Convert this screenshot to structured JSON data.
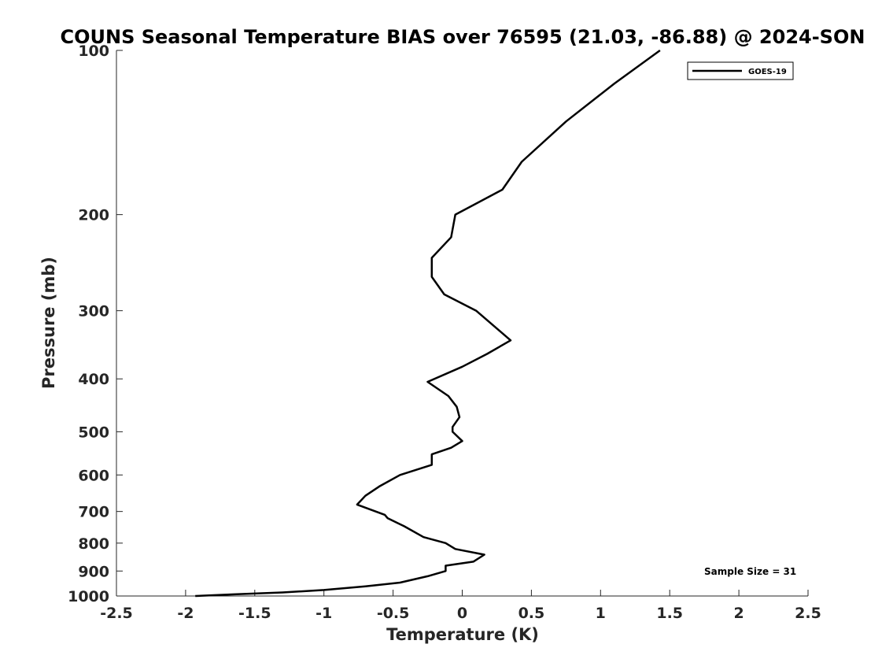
{
  "chart_data": {
    "type": "line",
    "title": "COUNS Seasonal Temperature BIAS over 76595 (21.03, -86.88) @ 2024-SON",
    "xlabel": "Temperature (K)",
    "ylabel": "Pressure (mb)",
    "xlim": [
      -2.5,
      2.5
    ],
    "ylim": [
      1000,
      100
    ],
    "y_scale": "log",
    "y_reversed": true,
    "x_ticks": [
      -2.5,
      -2,
      -1.5,
      -1,
      -0.5,
      0,
      0.5,
      1,
      1.5,
      2,
      2.5
    ],
    "x_tick_labels": [
      "-2.5",
      "-2",
      "-1.5",
      "-1",
      "-0.5",
      "0",
      "0.5",
      "1",
      "1.5",
      "2",
      "2.5"
    ],
    "y_ticks": [
      100,
      200,
      300,
      400,
      500,
      600,
      700,
      800,
      900,
      1000
    ],
    "y_tick_labels": [
      "100",
      "200",
      "300",
      "400",
      "500",
      "600",
      "700",
      "800",
      "900",
      "1000"
    ],
    "grid": false,
    "legend_position": "top-right",
    "series": [
      {
        "name": "GOES-19",
        "color": "#000000",
        "x": [
          1.43,
          1.1,
          0.75,
          0.43,
          0.29,
          -0.05,
          -0.08,
          -0.22,
          -0.22,
          -0.13,
          0.1,
          0.35,
          0.18,
          0.0,
          -0.25,
          -0.1,
          -0.04,
          -0.02,
          -0.07,
          -0.07,
          0.0,
          -0.08,
          -0.22,
          -0.22,
          -0.45,
          -0.6,
          -0.7,
          -0.76,
          -0.56,
          -0.54,
          -0.42,
          -0.28,
          -0.12,
          -0.05,
          0.16,
          0.08,
          -0.12,
          -0.12,
          -0.25,
          -0.45,
          -0.7,
          -1.0,
          -1.3,
          -1.65,
          -1.93
        ],
        "y": [
          100,
          115,
          135,
          160,
          180,
          200,
          220,
          240,
          260,
          280,
          300,
          340,
          360,
          380,
          405,
          430,
          450,
          470,
          490,
          500,
          520,
          535,
          550,
          575,
          600,
          630,
          655,
          680,
          710,
          720,
          745,
          780,
          800,
          820,
          840,
          865,
          880,
          900,
          920,
          945,
          960,
          975,
          985,
          993,
          1000
        ]
      }
    ],
    "annotations": [
      "Sample Size = 31"
    ]
  },
  "legend": {
    "label": "GOES-19"
  },
  "annotation": {
    "sample_size": "Sample Size = 31"
  }
}
